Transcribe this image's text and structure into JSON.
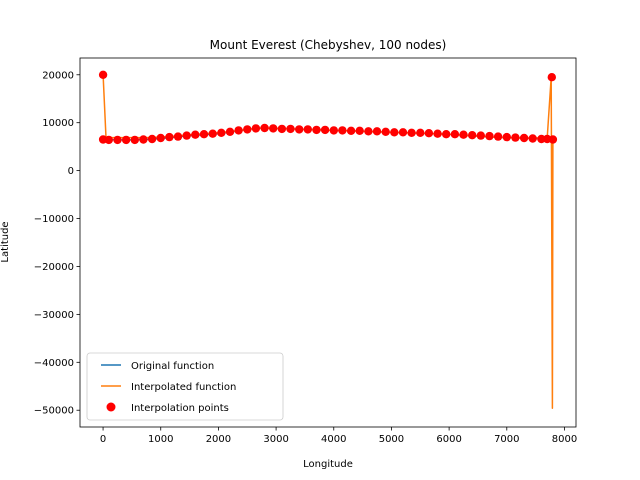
{
  "chart_data": {
    "type": "line",
    "title": "Mount Everest (Chebyshev, 100 nodes)",
    "xlabel": "Longitude",
    "ylabel": "Latitude",
    "xlim": [
      -400,
      8200
    ],
    "ylim": [
      -53500,
      23500
    ],
    "xticks": [
      0,
      1000,
      2000,
      3000,
      4000,
      5000,
      6000,
      7000,
      8000
    ],
    "yticks": [
      20000,
      10000,
      0,
      -10000,
      -20000,
      -30000,
      -40000,
      -50000
    ],
    "xtick_labels": [
      "0",
      "1000",
      "2000",
      "3000",
      "4000",
      "5000",
      "6000",
      "7000",
      "8000"
    ],
    "ytick_labels": [
      "20000",
      "10000",
      "0",
      "−10000",
      "−20000",
      "−30000",
      "−40000",
      "−50000"
    ],
    "grid": false,
    "legend": {
      "placement": "lower-left",
      "entries": [
        "Original function",
        "Interpolated function",
        "Interpolation points"
      ]
    },
    "series": [
      {
        "name": "Original function",
        "kind": "line",
        "color": "#1f77b4",
        "x": [
          0,
          250,
          500,
          750,
          1000,
          1250,
          1500,
          1750,
          2000,
          2250,
          2500,
          2750,
          3000,
          3250,
          3500,
          3750,
          4000,
          4250,
          4500,
          4750,
          5000,
          5250,
          5500,
          5750,
          6000,
          6250,
          6500,
          6750,
          7000,
          7250,
          7500,
          7750,
          7800
        ],
        "y": [
          6500,
          6400,
          6400,
          6500,
          6700,
          7000,
          7300,
          7500,
          7700,
          8100,
          8600,
          8900,
          8800,
          8700,
          8600,
          8500,
          8400,
          8300,
          8200,
          8100,
          8000,
          7900,
          7800,
          7700,
          7600,
          7400,
          7200,
          7000,
          6900,
          6800,
          6700,
          6600,
          6500
        ]
      },
      {
        "name": "Interpolated function",
        "kind": "line",
        "color": "#ff7f0e",
        "x": [
          0,
          50,
          250,
          500,
          750,
          1000,
          1250,
          1500,
          1750,
          2000,
          2250,
          2500,
          2750,
          3000,
          3250,
          3500,
          3750,
          4000,
          4250,
          4500,
          4750,
          5000,
          5250,
          5500,
          5750,
          6000,
          6250,
          6500,
          6750,
          7000,
          7250,
          7500,
          7700,
          7770,
          7790,
          7800
        ],
        "y": [
          20000,
          6900,
          6900,
          6900,
          6900,
          7000,
          7200,
          7500,
          7700,
          7900,
          8200,
          8600,
          8900,
          8800,
          8700,
          8600,
          8500,
          8400,
          8300,
          8200,
          8100,
          8000,
          7900,
          7800,
          7700,
          7600,
          7400,
          7200,
          7000,
          6900,
          6800,
          6800,
          6800,
          19500,
          -49600,
          6500
        ]
      },
      {
        "name": "Interpolation points",
        "kind": "scatter",
        "color": "#ff0000",
        "x": [
          0,
          0,
          100,
          250,
          400,
          550,
          700,
          850,
          1000,
          1150,
          1300,
          1450,
          1600,
          1750,
          1900,
          2050,
          2200,
          2350,
          2500,
          2650,
          2800,
          2950,
          3100,
          3250,
          3400,
          3550,
          3700,
          3850,
          4000,
          4150,
          4300,
          4450,
          4600,
          4750,
          4900,
          5050,
          5200,
          5350,
          5500,
          5650,
          5800,
          5950,
          6100,
          6250,
          6400,
          6550,
          6700,
          6850,
          7000,
          7150,
          7300,
          7450,
          7600,
          7700,
          7780,
          7800
        ],
        "y": [
          20000,
          6500,
          6400,
          6400,
          6400,
          6400,
          6500,
          6600,
          6800,
          7000,
          7100,
          7300,
          7500,
          7600,
          7700,
          7900,
          8100,
          8400,
          8600,
          8800,
          8900,
          8800,
          8700,
          8700,
          8600,
          8600,
          8500,
          8500,
          8400,
          8400,
          8300,
          8300,
          8200,
          8200,
          8100,
          8000,
          8000,
          7900,
          7900,
          7800,
          7700,
          7600,
          7600,
          7500,
          7400,
          7300,
          7200,
          7100,
          7000,
          6900,
          6800,
          6700,
          6600,
          6600,
          19500,
          6500
        ]
      }
    ]
  }
}
